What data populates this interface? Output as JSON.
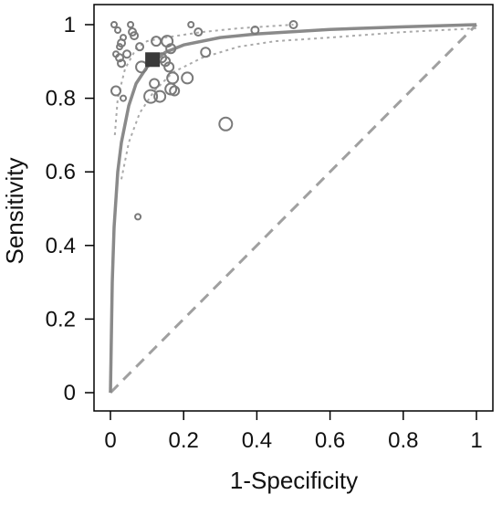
{
  "chart_data": {
    "type": "scatter",
    "title": "",
    "xlabel": "1-Specificity",
    "ylabel": "Sensitivity",
    "xlim": [
      0,
      1
    ],
    "ylim": [
      0,
      1
    ],
    "xticks": [
      "0",
      "0.2",
      "0.4",
      "0.6",
      "0.8",
      "1"
    ],
    "yticks": [
      "0",
      "0.2",
      "0.4",
      "0.6",
      "0.8",
      "1"
    ],
    "grid": false,
    "legend": "none",
    "colors": {
      "points": "#7a7a7a",
      "summary_point": "#3a3a3a",
      "sroc_curve": "#8a8a8a",
      "confidence_region": "#aaaaaa",
      "reference_line": "#a0a0a0",
      "frame": "#000000"
    },
    "summary_point": {
      "x": 0.115,
      "y": 0.905
    },
    "reference_line": [
      [
        0,
        0
      ],
      [
        1,
        1
      ]
    ],
    "sroc_curve": [
      [
        0,
        0
      ],
      [
        0.005,
        0.3
      ],
      [
        0.01,
        0.45
      ],
      [
        0.02,
        0.6
      ],
      [
        0.03,
        0.68
      ],
      [
        0.05,
        0.78
      ],
      [
        0.07,
        0.84
      ],
      [
        0.1,
        0.885
      ],
      [
        0.15,
        0.925
      ],
      [
        0.2,
        0.945
      ],
      [
        0.3,
        0.965
      ],
      [
        0.4,
        0.975
      ],
      [
        0.6,
        0.987
      ],
      [
        0.8,
        0.994
      ],
      [
        1,
        1
      ]
    ],
    "confidence_upper": [
      [
        0.012,
        0.7
      ],
      [
        0.02,
        0.8
      ],
      [
        0.04,
        0.88
      ],
      [
        0.07,
        0.935
      ],
      [
        0.1,
        0.955
      ],
      [
        0.15,
        0.965
      ],
      [
        0.25,
        0.98
      ],
      [
        0.35,
        0.99
      ],
      [
        0.5,
        1.0
      ]
    ],
    "confidence_lower": [
      [
        0.03,
        0.58
      ],
      [
        0.05,
        0.68
      ],
      [
        0.08,
        0.76
      ],
      [
        0.12,
        0.82
      ],
      [
        0.17,
        0.87
      ],
      [
        0.25,
        0.91
      ],
      [
        0.35,
        0.94
      ],
      [
        0.45,
        0.955
      ],
      [
        0.6,
        0.965
      ],
      [
        0.8,
        0.98
      ],
      [
        1.0,
        0.99
      ]
    ],
    "points": [
      {
        "x": 0.01,
        "y": 1.0,
        "size": 3
      },
      {
        "x": 0.055,
        "y": 1.0,
        "size": 3
      },
      {
        "x": 0.22,
        "y": 1.0,
        "size": 3
      },
      {
        "x": 0.5,
        "y": 1.0,
        "size": 4
      },
      {
        "x": 0.395,
        "y": 0.985,
        "size": 4
      },
      {
        "x": 0.24,
        "y": 0.98,
        "size": 4
      },
      {
        "x": 0.02,
        "y": 0.985,
        "size": 3
      },
      {
        "x": 0.06,
        "y": 0.98,
        "size": 4
      },
      {
        "x": 0.065,
        "y": 0.97,
        "size": 4
      },
      {
        "x": 0.035,
        "y": 0.965,
        "size": 3
      },
      {
        "x": 0.03,
        "y": 0.95,
        "size": 4
      },
      {
        "x": 0.025,
        "y": 0.94,
        "size": 3
      },
      {
        "x": 0.08,
        "y": 0.94,
        "size": 4
      },
      {
        "x": 0.125,
        "y": 0.955,
        "size": 5
      },
      {
        "x": 0.155,
        "y": 0.955,
        "size": 6
      },
      {
        "x": 0.165,
        "y": 0.935,
        "size": 5
      },
      {
        "x": 0.015,
        "y": 0.92,
        "size": 3
      },
      {
        "x": 0.045,
        "y": 0.92,
        "size": 4
      },
      {
        "x": 0.025,
        "y": 0.91,
        "size": 4
      },
      {
        "x": 0.03,
        "y": 0.895,
        "size": 4
      },
      {
        "x": 0.14,
        "y": 0.91,
        "size": 5
      },
      {
        "x": 0.15,
        "y": 0.9,
        "size": 5
      },
      {
        "x": 0.085,
        "y": 0.885,
        "size": 6
      },
      {
        "x": 0.16,
        "y": 0.885,
        "size": 5
      },
      {
        "x": 0.26,
        "y": 0.925,
        "size": 5
      },
      {
        "x": 0.17,
        "y": 0.855,
        "size": 6
      },
      {
        "x": 0.21,
        "y": 0.855,
        "size": 6
      },
      {
        "x": 0.12,
        "y": 0.84,
        "size": 5
      },
      {
        "x": 0.165,
        "y": 0.825,
        "size": 6
      },
      {
        "x": 0.175,
        "y": 0.82,
        "size": 5
      },
      {
        "x": 0.015,
        "y": 0.82,
        "size": 5
      },
      {
        "x": 0.11,
        "y": 0.805,
        "size": 7
      },
      {
        "x": 0.135,
        "y": 0.805,
        "size": 6
      },
      {
        "x": 0.035,
        "y": 0.8,
        "size": 3
      },
      {
        "x": 0.315,
        "y": 0.73,
        "size": 7
      },
      {
        "x": 0.075,
        "y": 0.478,
        "size": 3
      }
    ]
  }
}
